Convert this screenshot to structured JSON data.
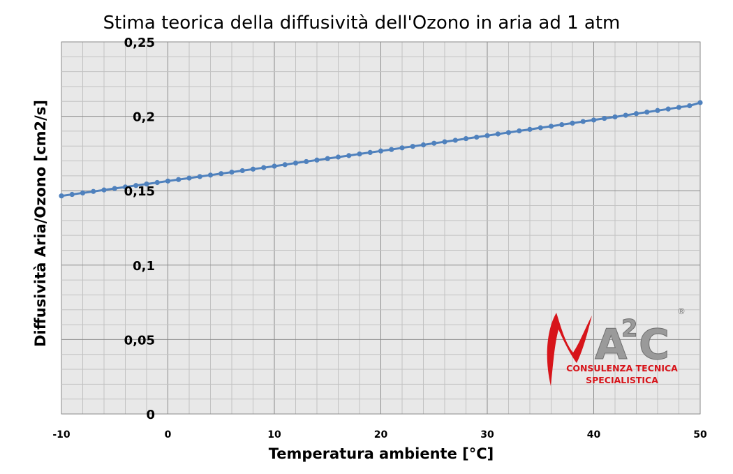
{
  "chart_data": {
    "type": "line",
    "title": "Stima teorica della diffusività dell'Ozono in aria ad 1 atm",
    "xlabel": "Temperatura ambiente [°C]",
    "ylabel": "Diffusività Aria/Ozono [cm2/s]",
    "xlim": [
      -10,
      50
    ],
    "ylim": [
      0,
      0.25
    ],
    "x_ticks": [
      -10,
      0,
      10,
      20,
      30,
      40,
      50
    ],
    "x_tick_labels": [
      "-10",
      "0",
      "10",
      "20",
      "30",
      "40",
      "50"
    ],
    "y_ticks": [
      0,
      0.05,
      0.1,
      0.15,
      0.2,
      0.25
    ],
    "y_tick_labels": [
      "0",
      "0,05",
      "0,1",
      "0,15",
      "0,2",
      "0,25"
    ],
    "grid": true,
    "legend": "none",
    "series_color": "#4F81BD",
    "plot_background": "#E8E8E8",
    "gridline_color": "#808080",
    "series": [
      {
        "x": [
          -10,
          -9,
          -8,
          -7,
          -6,
          -5,
          -4,
          -3,
          -2,
          -1,
          0,
          1,
          2,
          3,
          4,
          5,
          6,
          7,
          8,
          9,
          10,
          11,
          12,
          13,
          14,
          15,
          16,
          17,
          18,
          19,
          20,
          21,
          22,
          23,
          24,
          25,
          26,
          27,
          28,
          29,
          30,
          31,
          32,
          33,
          34,
          35,
          36,
          37,
          38,
          39,
          40,
          41,
          42,
          43,
          44,
          45,
          46,
          47,
          48,
          49,
          50
        ],
        "y": [
          0.1465,
          0.1475,
          0.1485,
          0.1495,
          0.1505,
          0.1515,
          0.1525,
          0.1535,
          0.1545,
          0.1555,
          0.1565,
          0.1575,
          0.1585,
          0.1595,
          0.1605,
          0.1615,
          0.1625,
          0.1635,
          0.1645,
          0.1655,
          0.1665,
          0.1675,
          0.1686,
          0.1696,
          0.1706,
          0.1716,
          0.1726,
          0.1736,
          0.1747,
          0.1757,
          0.1767,
          0.1777,
          0.1788,
          0.1798,
          0.1808,
          0.1819,
          0.1829,
          0.1839,
          0.185,
          0.186,
          0.187,
          0.1881,
          0.1891,
          0.1902,
          0.1912,
          0.1923,
          0.1933,
          0.1944,
          0.1954,
          0.1965,
          0.1975,
          0.1986,
          0.1996,
          0.2007,
          0.2018,
          0.2028,
          0.2039,
          0.2049,
          0.206,
          0.2071,
          0.2092
        ]
      }
    ]
  },
  "logo": {
    "name": "a2c-logo",
    "mark": "A",
    "sup": "2",
    "mark2": "C",
    "registered": "®",
    "line1": "CONSULENZA TECNICA",
    "line2": "SPECIALISTICA",
    "accent": "#D7141A",
    "grey": "#9A9A9A"
  }
}
